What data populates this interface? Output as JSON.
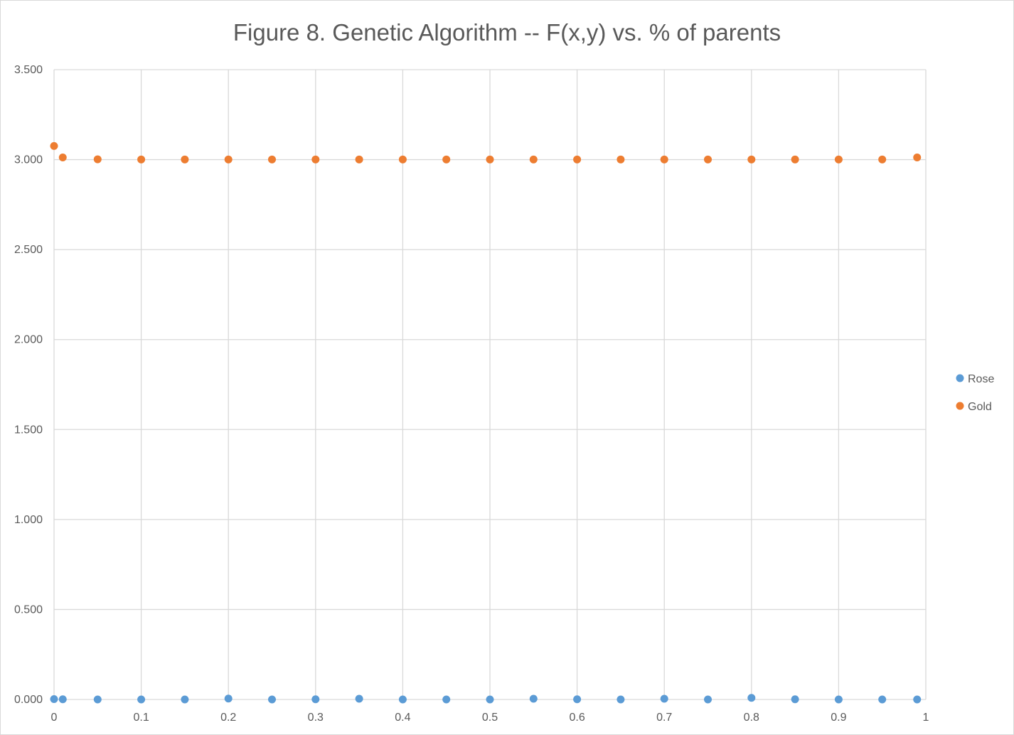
{
  "chart_data": {
    "type": "scatter",
    "title": "Figure 8. Genetic Algorithm -- F(x,y) vs. % of parents",
    "xlabel": "",
    "ylabel": "",
    "xlim": [
      0,
      1
    ],
    "ylim": [
      0,
      3.5
    ],
    "x_ticks": [
      "0",
      "0.1",
      "0.2",
      "0.3",
      "0.4",
      "0.5",
      "0.6",
      "0.7",
      "0.8",
      "0.9",
      "1"
    ],
    "y_ticks": [
      "0.000",
      "0.500",
      "1.000",
      "1.500",
      "2.000",
      "2.500",
      "3.000",
      "3.500"
    ],
    "grid": true,
    "legend_position": "right",
    "x": [
      0,
      0.01,
      0.05,
      0.1,
      0.15,
      0.2,
      0.25,
      0.3,
      0.35,
      0.4,
      0.45,
      0.5,
      0.55,
      0.6,
      0.65,
      0.7,
      0.75,
      0.8,
      0.85,
      0.9,
      0.95,
      0.99
    ],
    "series": [
      {
        "name": "Rose",
        "color": "#5b9bd5",
        "values": [
          0.002,
          0.001,
          0.0,
          0.0,
          0.0,
          0.005,
          0.0,
          0.001,
          0.004,
          0.0,
          0.0,
          0.0,
          0.004,
          0.001,
          0.0,
          0.004,
          0.0,
          0.009,
          0.001,
          0.0,
          0.0,
          0.0
        ]
      },
      {
        "name": "Gold",
        "color": "#ed7d31",
        "values": [
          3.076,
          3.012,
          3.002,
          3.001,
          3.001,
          3.001,
          3.001,
          3.001,
          3.001,
          3.001,
          3.001,
          3.001,
          3.001,
          3.001,
          3.001,
          3.001,
          3.001,
          3.001,
          3.001,
          3.001,
          3.001,
          3.012
        ]
      }
    ]
  }
}
